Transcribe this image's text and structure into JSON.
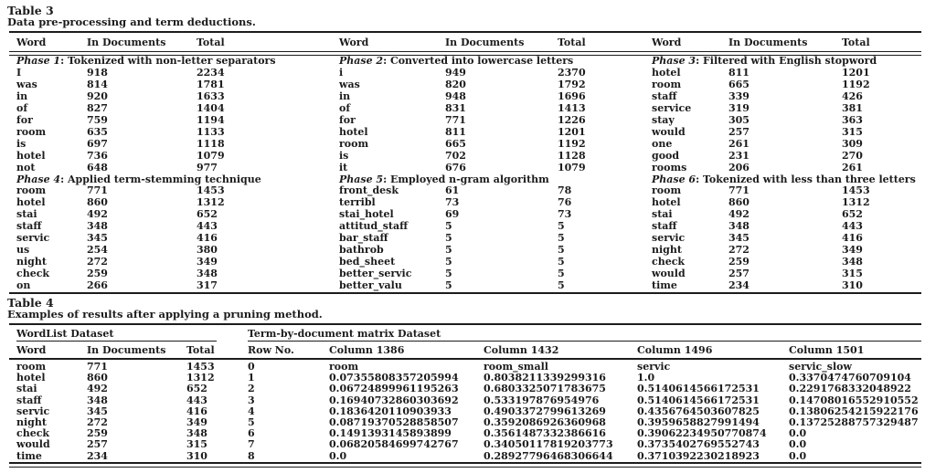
{
  "page": {
    "background": "#ffffff",
    "text_color": "#1c1c1c"
  },
  "table3": {
    "title": "Table 3",
    "caption": "Data pre-processing and term deductions.",
    "column_headers": [
      "Word",
      "In Documents",
      "Total"
    ],
    "phases": [
      {
        "name": "Phase 1",
        "description": ": Tokenized with non-letter separators",
        "rows": [
          [
            "I",
            "918",
            "2234"
          ],
          [
            "was",
            "814",
            "1781"
          ],
          [
            "in",
            "920",
            "1633"
          ],
          [
            "of",
            "827",
            "1404"
          ],
          [
            "for",
            "759",
            "1194"
          ],
          [
            "room",
            "635",
            "1133"
          ],
          [
            "is",
            "697",
            "1118"
          ],
          [
            "hotel",
            "736",
            "1079"
          ],
          [
            "not",
            "648",
            "977"
          ]
        ]
      },
      {
        "name": "Phase 2",
        "description": ": Converted into lowercase letters",
        "rows": [
          [
            "i",
            "949",
            "2370"
          ],
          [
            "was",
            "820",
            "1792"
          ],
          [
            "in",
            "948",
            "1696"
          ],
          [
            "of",
            "831",
            "1413"
          ],
          [
            "for",
            "771",
            "1226"
          ],
          [
            "hotel",
            "811",
            "1201"
          ],
          [
            "room",
            "665",
            "1192"
          ],
          [
            "is",
            "702",
            "1128"
          ],
          [
            "it",
            "676",
            "1079"
          ]
        ]
      },
      {
        "name": "Phase 3",
        "description": ": Filtered with English stopword",
        "rows": [
          [
            "hotel",
            "811",
            "1201"
          ],
          [
            "room",
            "665",
            "1192"
          ],
          [
            "staff",
            "339",
            "426"
          ],
          [
            "service",
            "319",
            "381"
          ],
          [
            "stay",
            "305",
            "363"
          ],
          [
            "would",
            "257",
            "315"
          ],
          [
            "one",
            "261",
            "309"
          ],
          [
            "good",
            "231",
            "270"
          ],
          [
            "rooms",
            "206",
            "261"
          ]
        ]
      },
      {
        "name": "Phase 4",
        "description": ": Applied term-stemming technique",
        "rows": [
          [
            "room",
            "771",
            "1453"
          ],
          [
            "hotel",
            "860",
            "1312"
          ],
          [
            "stai",
            "492",
            "652"
          ],
          [
            "staff",
            "348",
            "443"
          ],
          [
            "servic",
            "345",
            "416"
          ],
          [
            "us",
            "254",
            "380"
          ],
          [
            "night",
            "272",
            "349"
          ],
          [
            "check",
            "259",
            "348"
          ],
          [
            "on",
            "266",
            "317"
          ]
        ]
      },
      {
        "name": "Phase 5",
        "description": ": Employed n-gram algorithm",
        "rows": [
          [
            "front_desk",
            "61",
            "78"
          ],
          [
            "terribl",
            "73",
            "76"
          ],
          [
            "stai_hotel",
            "69",
            "73"
          ],
          [
            "attitud_staff",
            "5",
            "5"
          ],
          [
            "bar_staff",
            "5",
            "5"
          ],
          [
            "bathrob",
            "5",
            "5"
          ],
          [
            "bed_sheet",
            "5",
            "5"
          ],
          [
            "better_servic",
            "5",
            "5"
          ],
          [
            "better_valu",
            "5",
            "5"
          ]
        ]
      },
      {
        "name": "Phase 6",
        "description": ": Tokenized with less than three letters",
        "rows": [
          [
            "room",
            "771",
            "1453"
          ],
          [
            "hotel",
            "860",
            "1312"
          ],
          [
            "stai",
            "492",
            "652"
          ],
          [
            "staff",
            "348",
            "443"
          ],
          [
            "servic",
            "345",
            "416"
          ],
          [
            "night",
            "272",
            "349"
          ],
          [
            "check",
            "259",
            "348"
          ],
          [
            "would",
            "257",
            "315"
          ],
          [
            "time",
            "234",
            "310"
          ]
        ]
      }
    ]
  },
  "table4": {
    "title": "Table 4",
    "caption": "Examples of results after applying a pruning method.",
    "wordlist": {
      "group_label": "WordList Dataset",
      "headers": [
        "Word",
        "In Documents",
        "Total"
      ],
      "rows": [
        [
          "room",
          "771",
          "1453"
        ],
        [
          "hotel",
          "860",
          "1312"
        ],
        [
          "stai",
          "492",
          "652"
        ],
        [
          "staff",
          "348",
          "443"
        ],
        [
          "servic",
          "345",
          "416"
        ],
        [
          "night",
          "272",
          "349"
        ],
        [
          "check",
          "259",
          "348"
        ],
        [
          "would",
          "257",
          "315"
        ],
        [
          "time",
          "234",
          "310"
        ]
      ]
    },
    "matrix": {
      "group_label": "Term-by-document matrix Dataset",
      "headers": [
        "Row No.",
        "Column 1386",
        "Column 1432",
        "Column 1496",
        "Column 1501"
      ],
      "rows": [
        [
          "0",
          "room",
          "room_small",
          "servic",
          "servic_slow"
        ],
        [
          "1",
          "0.07355808357205994",
          "0.8038211339299316",
          "1.0",
          "0.3370474760709104"
        ],
        [
          "2",
          "0.06724899961195263",
          "0.6803325071783675",
          "0.5140614566172531",
          "0.2291768332048922"
        ],
        [
          "3",
          "0.16940732860303692",
          "0.533197876954976",
          "0.5140614566172531",
          "0.14708016552910552"
        ],
        [
          "4",
          "0.1836420110903933",
          "0.4903372799613269",
          "0.4356764503607825",
          "0.13806254215922176"
        ],
        [
          "5",
          "0.08719370528858507",
          "0.3592086926360968",
          "0.3959658827991494",
          "0.13725288757329487"
        ],
        [
          "6",
          "0.1491393145893899",
          "0.3561487332386616",
          "0.39062234950770874",
          "0.0"
        ],
        [
          "7",
          "0.06820584699742767",
          "0.34050117819203773",
          "0.3735402769552743",
          "0.0"
        ],
        [
          "8",
          "0.0",
          "0.28927796468306644",
          "0.3710392230218923",
          "0.0"
        ]
      ]
    }
  }
}
